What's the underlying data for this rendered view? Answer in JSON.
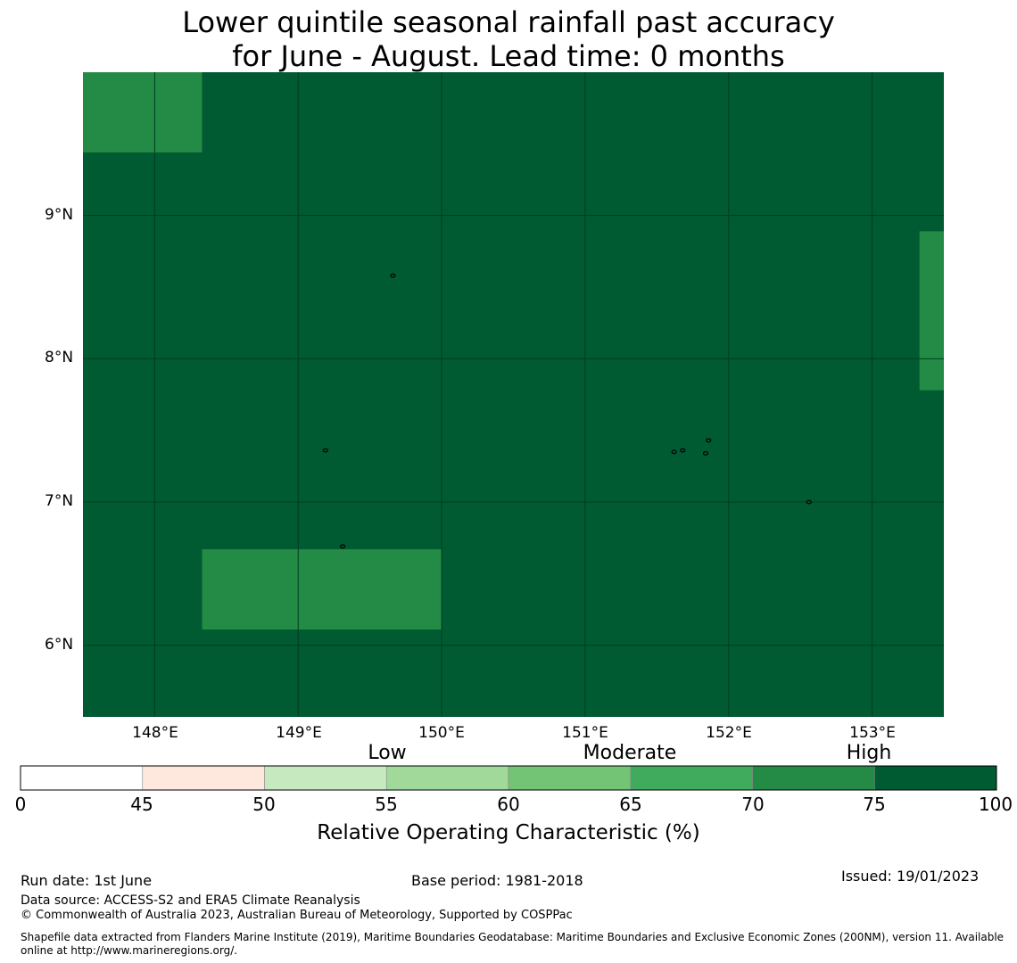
{
  "title_line1": "Lower quintile seasonal rainfall past accuracy",
  "title_line2": "for June - August. Lead time: 0 months",
  "map": {
    "lon_range": [
      147.5,
      153.5
    ],
    "lat_range": [
      5.5,
      10.0
    ],
    "lat_ticks": [
      {
        "value": 9,
        "label": "9°N"
      },
      {
        "value": 8,
        "label": "8°N"
      },
      {
        "value": 7,
        "label": "7°N"
      },
      {
        "value": 6,
        "label": "6°N"
      }
    ],
    "lon_ticks": [
      {
        "value": 148,
        "label": "148°E"
      },
      {
        "value": 149,
        "label": "149°E"
      },
      {
        "value": 150,
        "label": "150°E"
      },
      {
        "value": 151,
        "label": "151°E"
      },
      {
        "value": 152,
        "label": "152°E"
      },
      {
        "value": 153,
        "label": "153°E"
      }
    ],
    "background_color": "#005a32",
    "regions": [
      {
        "lon": [
          147.5,
          148.33
        ],
        "lat": [
          9.44,
          10.0
        ],
        "color": "#238b45"
      },
      {
        "lon": [
          148.33,
          150.0
        ],
        "lat": [
          6.11,
          6.67
        ],
        "color": "#238b45"
      },
      {
        "lon": [
          153.33,
          153.5
        ],
        "lat": [
          7.78,
          8.89
        ],
        "color": "#238b45"
      }
    ],
    "islands": [
      {
        "lon": 149.66,
        "lat": 8.58
      },
      {
        "lon": 149.19,
        "lat": 7.36
      },
      {
        "lon": 149.31,
        "lat": 6.69
      },
      {
        "lon": 151.62,
        "lat": 7.35
      },
      {
        "lon": 151.68,
        "lat": 7.36
      },
      {
        "lon": 151.84,
        "lat": 7.34
      },
      {
        "lon": 151.86,
        "lat": 7.43
      },
      {
        "lon": 152.56,
        "lat": 7.0
      }
    ]
  },
  "colorbar": {
    "segments": [
      {
        "from": 0,
        "to": 45,
        "color": "#ffffff"
      },
      {
        "from": 45,
        "to": 50,
        "color": "#fee8de"
      },
      {
        "from": 50,
        "to": 55,
        "color": "#c7e9c0"
      },
      {
        "from": 55,
        "to": 60,
        "color": "#a1d99b"
      },
      {
        "from": 60,
        "to": 65,
        "color": "#74c476"
      },
      {
        "from": 65,
        "to": 70,
        "color": "#41ab5d"
      },
      {
        "from": 70,
        "to": 75,
        "color": "#238b45"
      },
      {
        "from": 75,
        "to": 100,
        "color": "#005a32"
      }
    ],
    "ticks": [
      "0",
      "45",
      "50",
      "55",
      "60",
      "65",
      "70",
      "75",
      "100"
    ],
    "categories": [
      "Low",
      "Moderate",
      "High"
    ],
    "label": "Relative Operating Characteristic (%)"
  },
  "footer": {
    "run_date": "Run date: 1st June",
    "base_period": "Base period: 1981-2018",
    "issued": "Issued: 19/01/2023",
    "data_source": "Data source: ACCESS-S2 and ERA5 Climate Reanalysis",
    "copyright": "© Commonwealth of Australia 2023, Australian Bureau of Meteorology, Supported by COSPPac",
    "shapefile_line1": "Shapefile data extracted from Flanders Marine Institute (2019), Maritime Boundaries Geodatabase: Maritime Boundaries and Exclusive Economic Zones (200NM), version 11. Available",
    "shapefile_line2": "online at http://www.marineregions.org/."
  }
}
